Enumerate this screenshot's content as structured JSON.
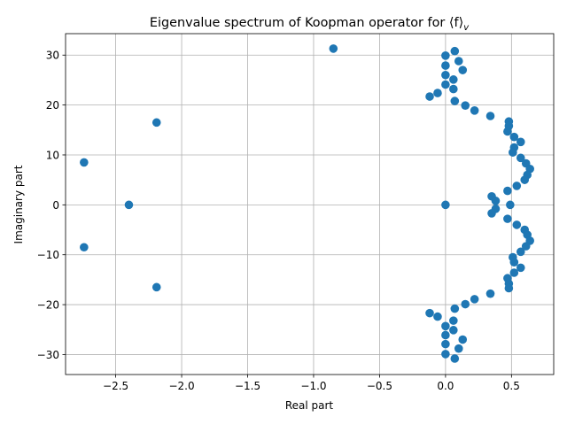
{
  "chart_data": {
    "type": "scatter",
    "title": "Eigenvalue spectrum of Koopman operator for ⟨f⟩",
    "title_subscript": "v",
    "xlabel": "Real part",
    "ylabel": "Imaginary part",
    "xlim": [
      -2.88,
      0.82
    ],
    "ylim": [
      -34.0,
      34.3
    ],
    "xticks": [
      -2.5,
      -2.0,
      -1.5,
      -1.0,
      -0.5,
      0.0,
      0.5
    ],
    "xtick_labels": [
      "−2.5",
      "−2.0",
      "−1.5",
      "−1.0",
      "−0.5",
      "0.0",
      "0.5"
    ],
    "yticks": [
      -30,
      -20,
      -10,
      0,
      10,
      20,
      30
    ],
    "ytick_labels": [
      "−30",
      "−20",
      "−10",
      "0",
      "10",
      "20",
      "30"
    ],
    "grid": true,
    "marker_color": "#1f77b4",
    "points": [
      [
        -0.85,
        31.3
      ],
      [
        0.07,
        30.8
      ],
      [
        0.0,
        29.9
      ],
      [
        0.1,
        28.8
      ],
      [
        0.0,
        27.9
      ],
      [
        0.13,
        27.0
      ],
      [
        0.0,
        26.0
      ],
      [
        0.06,
        25.1
      ],
      [
        0.0,
        24.1
      ],
      [
        0.06,
        23.2
      ],
      [
        -0.06,
        22.4
      ],
      [
        -0.12,
        21.7
      ],
      [
        0.07,
        20.8
      ],
      [
        0.15,
        19.9
      ],
      [
        0.22,
        18.9
      ],
      [
        0.34,
        17.8
      ],
      [
        0.48,
        16.7
      ],
      [
        0.48,
        15.8
      ],
      [
        0.47,
        14.7
      ],
      [
        0.52,
        13.6
      ],
      [
        0.57,
        12.6
      ],
      [
        0.52,
        11.5
      ],
      [
        0.51,
        10.5
      ],
      [
        0.57,
        9.4
      ],
      [
        0.61,
        8.3
      ],
      [
        0.64,
        7.2
      ],
      [
        0.62,
        6.0
      ],
      [
        0.6,
        5.0
      ],
      [
        0.54,
        3.8
      ],
      [
        0.47,
        2.8
      ],
      [
        0.35,
        1.7
      ],
      [
        0.38,
        0.8
      ],
      [
        0.49,
        0.0
      ],
      [
        0.38,
        -0.8
      ],
      [
        0.35,
        -1.7
      ],
      [
        0.47,
        -2.8
      ],
      [
        0.54,
        -4.0
      ],
      [
        0.6,
        -5.0
      ],
      [
        0.62,
        -6.0
      ],
      [
        0.64,
        -7.2
      ],
      [
        0.61,
        -8.3
      ],
      [
        0.57,
        -9.4
      ],
      [
        0.51,
        -10.5
      ],
      [
        0.52,
        -11.5
      ],
      [
        0.57,
        -12.6
      ],
      [
        0.52,
        -13.6
      ],
      [
        0.47,
        -14.7
      ],
      [
        0.48,
        -15.8
      ],
      [
        0.48,
        -16.7
      ],
      [
        0.34,
        -17.8
      ],
      [
        0.22,
        -18.9
      ],
      [
        0.15,
        -19.9
      ],
      [
        0.07,
        -20.8
      ],
      [
        -0.12,
        -21.7
      ],
      [
        -0.06,
        -22.4
      ],
      [
        0.06,
        -23.2
      ],
      [
        0.0,
        -24.3
      ],
      [
        0.06,
        -25.1
      ],
      [
        0.0,
        -26.1
      ],
      [
        0.13,
        -27.0
      ],
      [
        0.0,
        -27.9
      ],
      [
        0.1,
        -28.8
      ],
      [
        0.0,
        -29.9
      ],
      [
        0.07,
        -30.8
      ],
      [
        0.0,
        0.0
      ],
      [
        -2.19,
        16.5
      ],
      [
        -2.19,
        -16.5
      ],
      [
        -2.74,
        8.5
      ],
      [
        -2.74,
        -8.5
      ],
      [
        -2.4,
        0.0
      ]
    ]
  }
}
